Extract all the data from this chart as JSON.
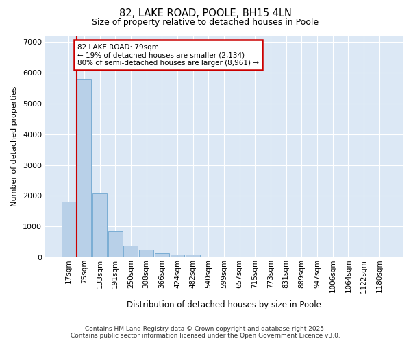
{
  "title1": "82, LAKE ROAD, POOLE, BH15 4LN",
  "title2": "Size of property relative to detached houses in Poole",
  "xlabel": "Distribution of detached houses by size in Poole",
  "ylabel": "Number of detached properties",
  "bar_labels": [
    "17sqm",
    "75sqm",
    "133sqm",
    "191sqm",
    "250sqm",
    "308sqm",
    "366sqm",
    "424sqm",
    "482sqm",
    "540sqm",
    "599sqm",
    "657sqm",
    "715sqm",
    "773sqm",
    "831sqm",
    "889sqm",
    "947sqm",
    "1006sqm",
    "1064sqm",
    "1122sqm",
    "1180sqm"
  ],
  "bar_values": [
    1800,
    5800,
    2080,
    840,
    370,
    240,
    145,
    95,
    80,
    30,
    5,
    0,
    0,
    0,
    0,
    0,
    0,
    0,
    0,
    0,
    0
  ],
  "bar_color": "#b8d0e8",
  "bar_edge_color": "#7aadd4",
  "annotation_title": "82 LAKE ROAD: 79sqm",
  "annotation_line1": "← 19% of detached houses are smaller (2,134)",
  "annotation_line2": "80% of semi-detached houses are larger (8,961) →",
  "annotation_box_color": "#ffffff",
  "annotation_box_edge": "#cc0000",
  "vline_color": "#cc0000",
  "ylim": [
    0,
    7200
  ],
  "yticks": [
    0,
    1000,
    2000,
    3000,
    4000,
    5000,
    6000,
    7000
  ],
  "bg_color": "#dce8f5",
  "fig_bg_color": "#ffffff",
  "footer1": "Contains HM Land Registry data © Crown copyright and database right 2025.",
  "footer2": "Contains public sector information licensed under the Open Government Licence v3.0."
}
